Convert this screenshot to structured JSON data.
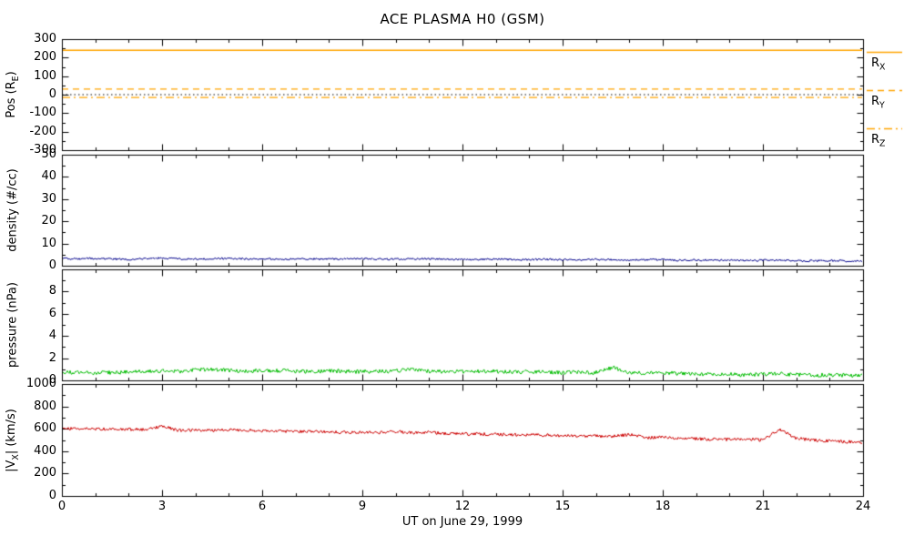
{
  "page": {
    "background": "#ffffff"
  },
  "chart_data": {
    "type": "line",
    "title": "ACE PLASMA H0 (GSM)",
    "xlabel": "UT on June 29, 1999",
    "x_range": [
      0,
      24
    ],
    "x_major_ticks": [
      0,
      3,
      6,
      9,
      12,
      15,
      18,
      21,
      24
    ],
    "x_minor_step": 1,
    "frame_color": "#000000",
    "panels": [
      {
        "name": "position",
        "ylabel": {
          "pre": "Pos (R",
          "sub": "E",
          "post": ")"
        },
        "ylim": [
          -300,
          300
        ],
        "yticks": [
          -300,
          -200,
          -100,
          0,
          100,
          200,
          300
        ],
        "y_minor_step": 50,
        "series": [
          {
            "name": "R_X",
            "color": "#FFA500",
            "style": "solid",
            "width": 1.5,
            "x": [
              0,
              24
            ],
            "y": [
              240,
              240
            ]
          },
          {
            "name": "R_Y",
            "color": "#FFA500",
            "style": "dashed",
            "width": 1.3,
            "x": [
              0,
              24
            ],
            "y": [
              30,
              30
            ]
          },
          {
            "name": "zero-ref",
            "color": "#000000",
            "style": "dotted",
            "width": 1,
            "x": [
              0,
              24
            ],
            "y": [
              0,
              0
            ]
          },
          {
            "name": "R_Z",
            "color": "#FFA500",
            "style": "dashdot",
            "width": 1.3,
            "x": [
              0,
              24
            ],
            "y": [
              -15,
              -15
            ]
          }
        ],
        "legend": [
          {
            "pre": "R",
            "sub": "X",
            "style": "solid",
            "color": "#FFA500"
          },
          {
            "pre": "R",
            "sub": "Y",
            "style": "dashed",
            "color": "#FFA500"
          },
          {
            "pre": "R",
            "sub": "Z",
            "style": "dashdot",
            "color": "#FFA500"
          }
        ]
      },
      {
        "name": "density",
        "ylabel": {
          "pre": "density (#/cc)",
          "sub": "",
          "post": ""
        },
        "ylim": [
          0,
          50
        ],
        "yticks": [
          0,
          10,
          20,
          30,
          40,
          50
        ],
        "y_minor_step": 5,
        "series": [
          {
            "name": "proton-density",
            "color": "#00008B",
            "style": "solid",
            "width": 1,
            "jitter": 0.45,
            "x_start": 0,
            "x_step": 0.5,
            "y": [
              3.2,
              3.1,
              3.3,
              3.0,
              2.9,
              3.2,
              3.4,
              3.1,
              3.0,
              3.2,
              3.3,
              3.1,
              3.0,
              2.9,
              3.1,
              3.0,
              2.9,
              3.0,
              3.2,
              3.0,
              2.9,
              3.0,
              3.1,
              2.9,
              2.8,
              2.9,
              3.0,
              2.8,
              2.7,
              2.9,
              2.7,
              2.6,
              2.8,
              2.6,
              2.5,
              2.7,
              2.6,
              2.5,
              2.6,
              2.4,
              2.5,
              2.3,
              2.4,
              2.5,
              2.3,
              2.2,
              2.3,
              2.1,
              2.0
            ]
          }
        ]
      },
      {
        "name": "pressure",
        "ylabel": {
          "pre": "pressure (nPa)",
          "sub": "",
          "post": ""
        },
        "ylim": [
          0,
          10
        ],
        "yticks": [
          0,
          2,
          4,
          6,
          8
        ],
        "y_minor_step": 1,
        "series": [
          {
            "name": "flow-pressure",
            "color": "#00BB00",
            "style": "solid",
            "width": 1,
            "jitter": 0.18,
            "x_start": 0,
            "x_step": 0.5,
            "y": [
              0.7,
              0.72,
              0.68,
              0.7,
              0.75,
              0.8,
              0.85,
              0.8,
              0.95,
              1.0,
              0.9,
              0.85,
              0.9,
              0.88,
              0.85,
              0.8,
              0.85,
              0.82,
              0.78,
              0.8,
              0.85,
              1.05,
              0.8,
              0.76,
              0.8,
              0.84,
              0.8,
              0.74,
              0.78,
              0.74,
              0.7,
              0.74,
              0.7,
              1.15,
              0.72,
              0.66,
              0.7,
              0.6,
              0.56,
              0.6,
              0.54,
              0.5,
              0.55,
              0.6,
              0.5,
              0.46,
              0.5,
              0.44,
              0.4
            ]
          }
        ]
      },
      {
        "name": "velocity",
        "ylabel": {
          "pre": "|V",
          "sub": "X",
          "post": "| (km/s)"
        },
        "ylim": [
          0,
          1000
        ],
        "yticks": [
          0,
          200,
          400,
          600,
          800,
          1000
        ],
        "y_minor_step": 100,
        "series": [
          {
            "name": "vx-speed",
            "color": "#CC0000",
            "style": "solid",
            "width": 1,
            "jitter": 14,
            "x_start": 0,
            "x_step": 0.5,
            "y": [
              600,
              601,
              598,
              597,
              595,
              592,
              625,
              585,
              588,
              585,
              590,
              588,
              585,
              580,
              578,
              575,
              572,
              570,
              568,
              565,
              576,
              562,
              568,
              558,
              555,
              553,
              550,
              548,
              545,
              542,
              540,
              538,
              535,
              532,
              548,
              520,
              526,
              515,
              510,
              506,
              505,
              510,
              500,
              595,
              515,
              498,
              490,
              485,
              480
            ]
          }
        ]
      }
    ]
  }
}
